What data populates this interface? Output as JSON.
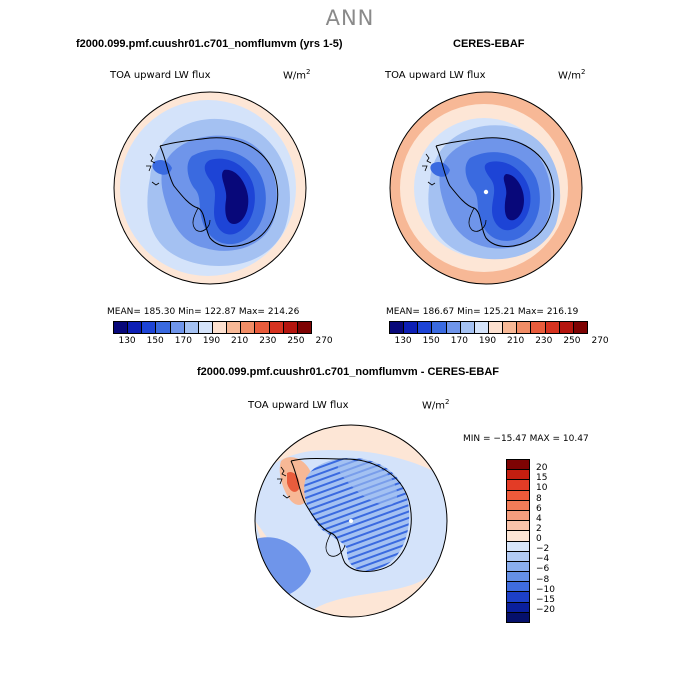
{
  "figure": {
    "title": "ANN"
  },
  "panels": {
    "model": {
      "title": "f2000.099.pmf.cuushr01.c701_nomflumvm (yrs 1-5)",
      "variable": "TOA upward LW flux",
      "units_base": "W/m",
      "units_exp": "2",
      "stats": "MEAN= 185.30   Min= 122.87   Max= 214.26"
    },
    "obs": {
      "title": "CERES-EBAF",
      "variable": "TOA upward LW flux",
      "units_base": "W/m",
      "units_exp": "2",
      "stats": "MEAN= 186.67   Min= 125.21   Max= 216.19"
    },
    "diff": {
      "title": "f2000.099.pmf.cuushr01.c701_nomflumvm - CERES-EBAF",
      "variable": "TOA upward LW flux",
      "units_base": "W/m",
      "units_exp": "2",
      "stats": "MIN = −15.47  MAX =  10.47"
    }
  },
  "colorbar_abs": {
    "ticks": [
      "130",
      "150",
      "170",
      "190",
      "210",
      "230",
      "250",
      "270"
    ],
    "colors": [
      "#08087a",
      "#0d1fb5",
      "#1d44d6",
      "#3a6ae0",
      "#6f95ea",
      "#a4c1f2",
      "#d4e3fa",
      "#fce0cf",
      "#f7b896",
      "#f18d66",
      "#e85c3c",
      "#d63320",
      "#b4150e",
      "#7e0303"
    ]
  },
  "colorbar_diff": {
    "labels": [
      "20",
      "15",
      "10",
      "8",
      "6",
      "4",
      "2",
      "0",
      "−2",
      "−4",
      "−6",
      "−8",
      "−10",
      "−15",
      "−20"
    ],
    "colors": [
      "#7e0303",
      "#c41e10",
      "#e33c26",
      "#ef5a3a",
      "#f27c58",
      "#f59e7e",
      "#f9c3aa",
      "#fde6d6",
      "#d8e6fa",
      "#b2cbf4",
      "#8aaeee",
      "#6590e6",
      "#3f6cde",
      "#1d40c8",
      "#0a1f9c",
      "#05106b"
    ]
  },
  "map_colors": {
    "ocean_outer": "#fde6d6",
    "ocean_mid": "#d4e3fa",
    "ocean_inner": "#a4c1f2",
    "ice_edge": "#6f95ea",
    "ice_mid": "#3a6ae0",
    "ice_core": "#1d44d6",
    "ice_deep": "#0d1fb5",
    "ice_darkest": "#08087a",
    "diff_pos": "#f7b896",
    "diff_pos_strong": "#e85c3c",
    "diff_neg": "#a4c1f2",
    "diff_neg_strong": "#3a6ae0",
    "diff_bg": "#d4e3fa"
  }
}
